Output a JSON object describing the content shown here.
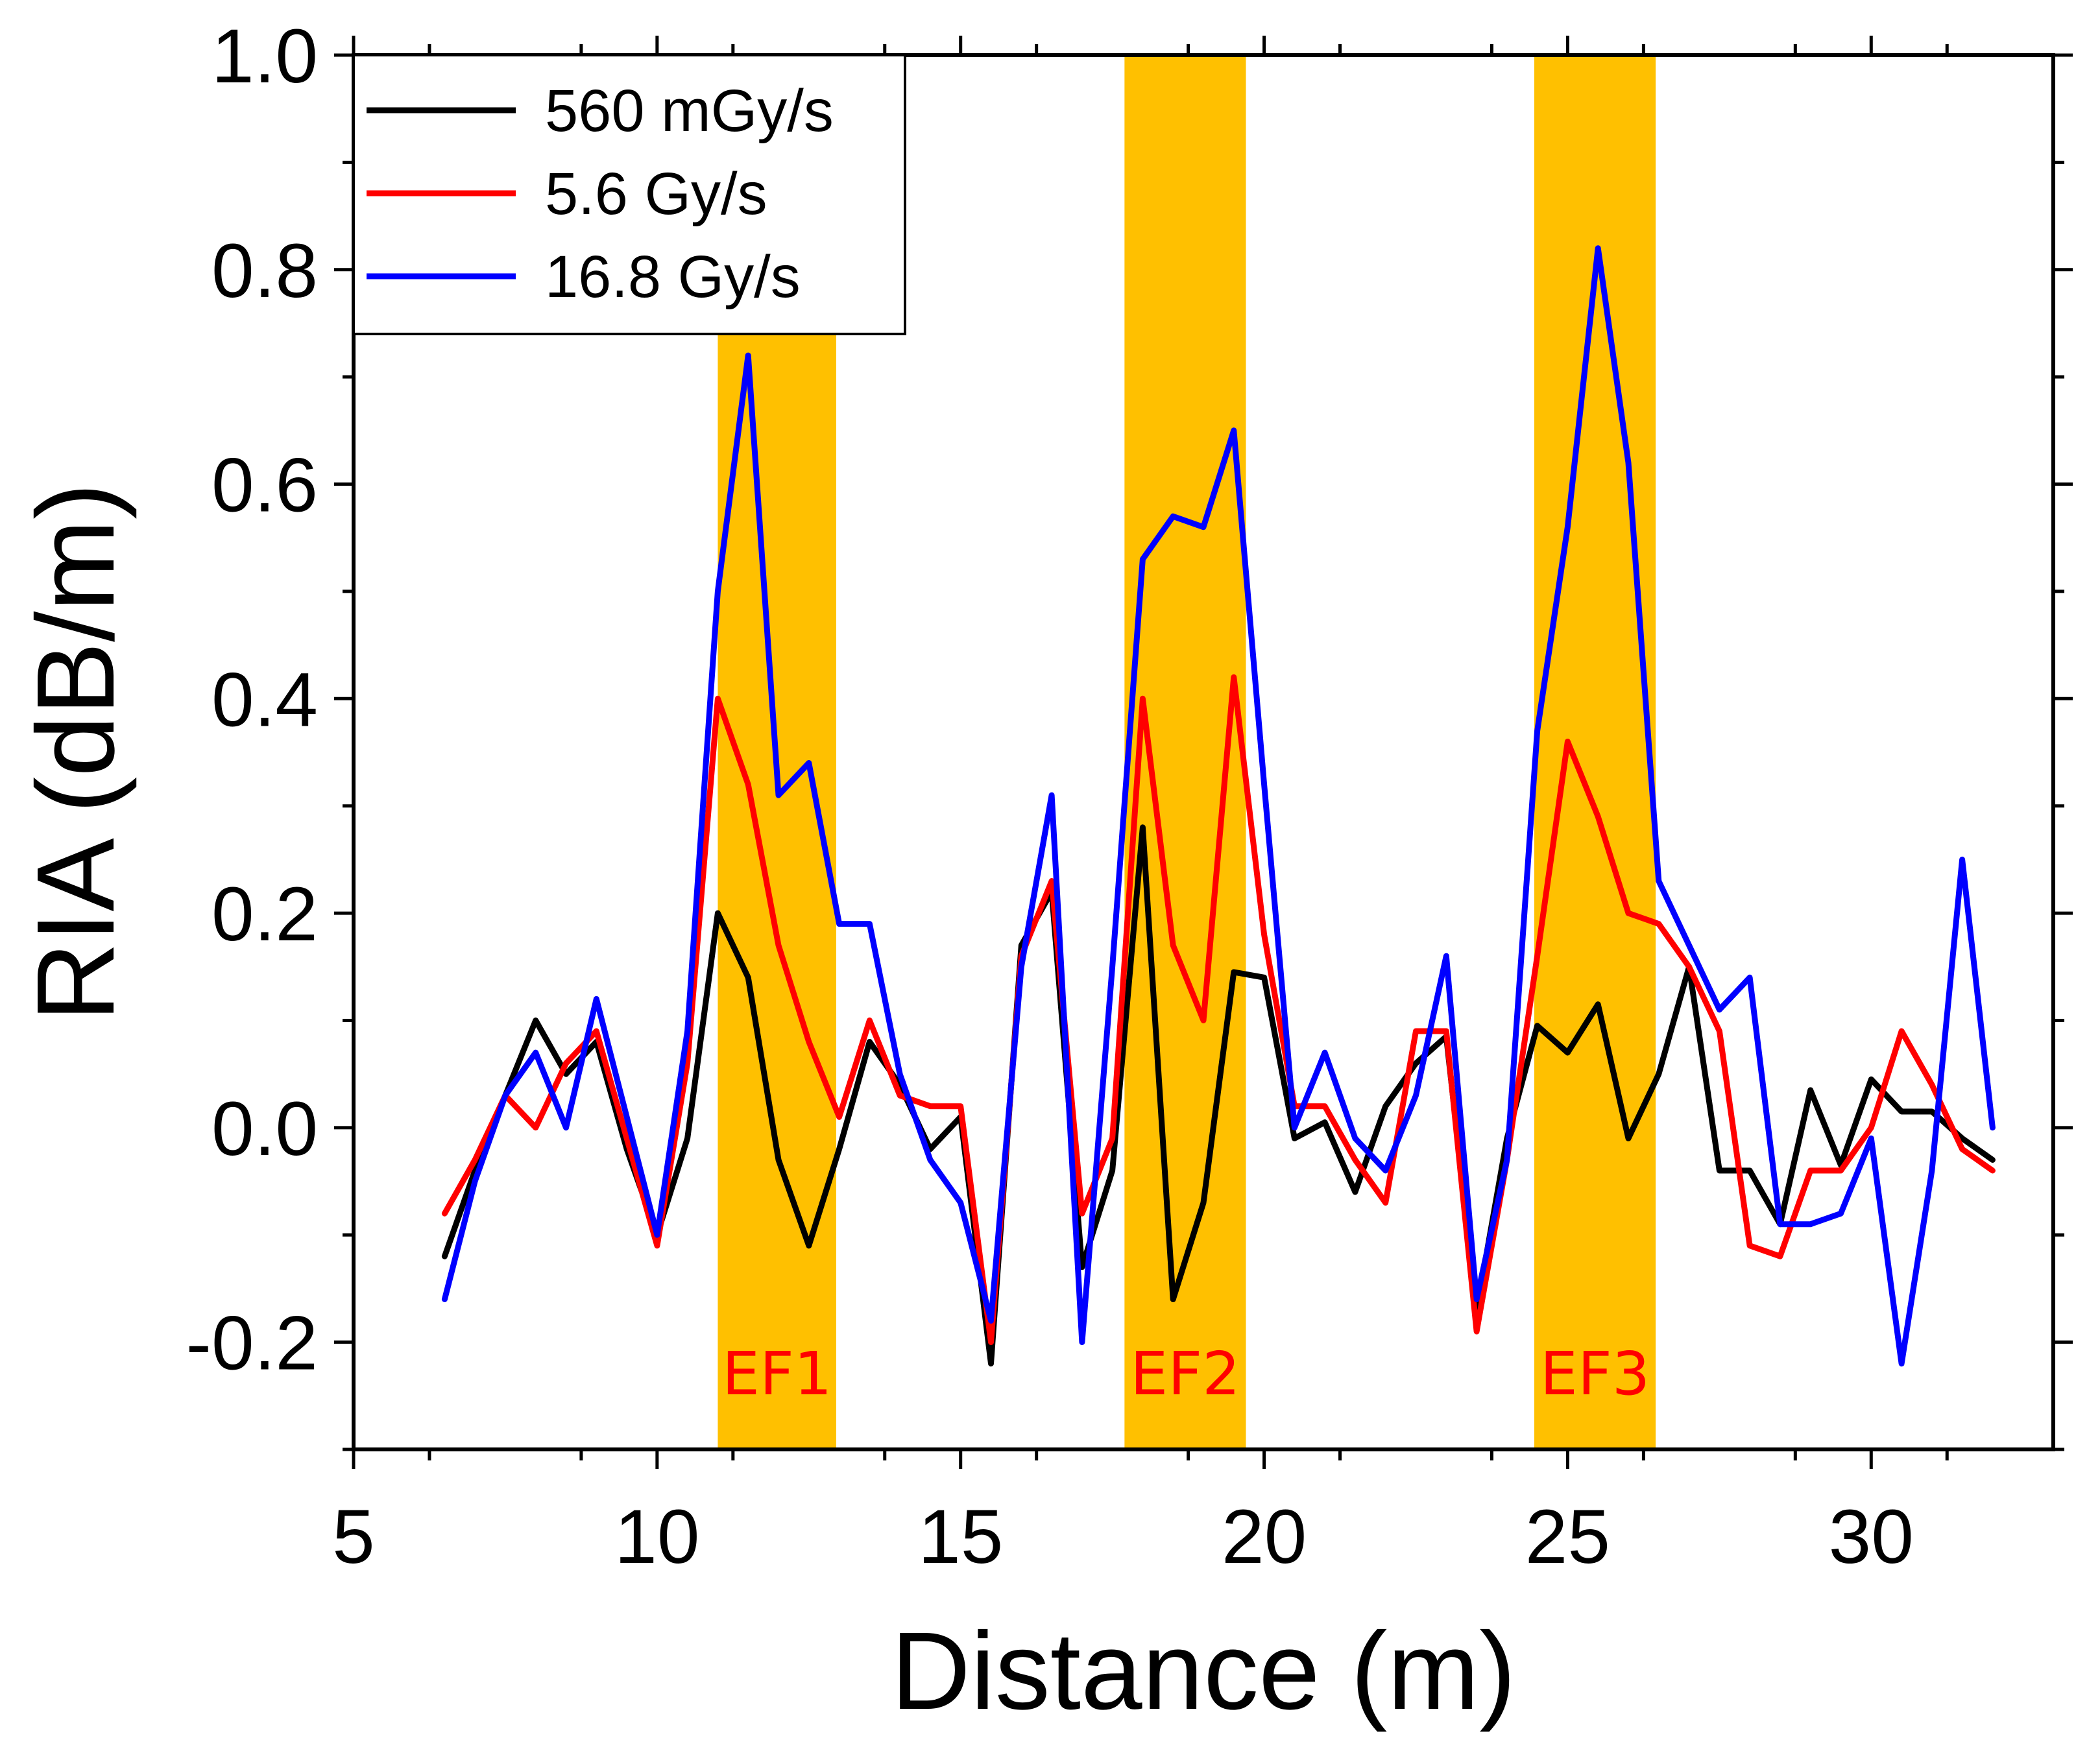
{
  "chart_data": {
    "type": "line",
    "xlabel": "Distance (m)",
    "ylabel": "RIA (dB/m)",
    "xlim": [
      5,
      33
    ],
    "ylim": [
      -0.3,
      1.0
    ],
    "xticks": [
      "5",
      "10",
      "15",
      "20",
      "25",
      "30"
    ],
    "yticks": [
      "-0.2",
      "0.0",
      "0.2",
      "0.4",
      "0.6",
      "0.8",
      "1.0"
    ],
    "grid": false,
    "legend_position": "top-left",
    "bands": [
      {
        "label": "EF1",
        "x_start": 11.0,
        "x_end": 12.95,
        "color": "#FFC000",
        "label_color": "#FF0000"
      },
      {
        "label": "EF2",
        "x_start": 17.7,
        "x_end": 19.7,
        "color": "#FFC000",
        "label_color": "#FF0000"
      },
      {
        "label": "EF3",
        "x_start": 24.45,
        "x_end": 26.45,
        "color": "#FFC000",
        "label_color": "#FF0000"
      }
    ],
    "x": [
      6.5,
      7.0,
      7.5,
      8.0,
      8.5,
      9.0,
      9.5,
      10.0,
      10.5,
      11.0,
      11.5,
      12.0,
      12.5,
      13.0,
      13.5,
      14.0,
      14.5,
      15.0,
      15.5,
      16.0,
      16.5,
      17.0,
      17.5,
      18.0,
      18.5,
      19.0,
      19.5,
      20.0,
      20.5,
      21.0,
      21.5,
      22.0,
      22.5,
      23.0,
      23.5,
      24.0,
      24.5,
      25.0,
      25.5,
      26.0,
      26.5,
      27.0,
      27.5,
      28.0,
      28.5,
      29.0,
      29.5,
      30.0,
      30.5,
      31.0,
      31.5,
      32.0
    ],
    "series": [
      {
        "name": "560 mGy/s",
        "color": "#000000",
        "values": [
          -0.12,
          -0.04,
          0.03,
          0.1,
          0.05,
          0.08,
          -0.02,
          -0.1,
          -0.01,
          0.2,
          0.14,
          -0.03,
          -0.11,
          -0.02,
          0.08,
          0.04,
          -0.02,
          0.01,
          -0.22,
          0.17,
          0.22,
          -0.13,
          -0.04,
          0.28,
          -0.16,
          -0.07,
          0.145,
          0.14,
          -0.01,
          0.005,
          -0.06,
          0.02,
          0.06,
          0.085,
          -0.17,
          -0.01,
          0.095,
          0.07,
          0.115,
          -0.01,
          0.05,
          0.15,
          -0.04,
          -0.04,
          -0.09,
          0.035,
          -0.035,
          0.045,
          0.015,
          0.015,
          -0.01,
          -0.03
        ]
      },
      {
        "name": "5.6 Gy/s",
        "color": "#FF0000",
        "values": [
          -0.08,
          -0.03,
          0.03,
          0.0,
          0.06,
          0.09,
          -0.01,
          -0.11,
          0.06,
          0.4,
          0.32,
          0.17,
          0.08,
          0.01,
          0.1,
          0.03,
          0.02,
          0.02,
          -0.2,
          0.16,
          0.23,
          -0.08,
          -0.01,
          0.4,
          0.17,
          0.1,
          0.42,
          0.18,
          0.02,
          0.02,
          -0.03,
          -0.07,
          0.09,
          0.09,
          -0.19,
          -0.03,
          0.16,
          0.36,
          0.29,
          0.2,
          0.19,
          0.15,
          0.09,
          -0.11,
          -0.12,
          -0.04,
          -0.04,
          0.0,
          0.09,
          0.04,
          -0.02,
          -0.04
        ]
      },
      {
        "name": "16.8 Gy/s",
        "color": "#0000FF",
        "values": [
          -0.16,
          -0.05,
          0.03,
          0.07,
          0.0,
          0.12,
          0.01,
          -0.1,
          0.09,
          0.5,
          0.72,
          0.31,
          0.34,
          0.19,
          0.19,
          0.05,
          -0.03,
          -0.07,
          -0.18,
          0.15,
          0.31,
          -0.2,
          0.15,
          0.53,
          0.57,
          0.56,
          0.65,
          0.32,
          0.0,
          0.07,
          -0.01,
          -0.04,
          0.03,
          0.16,
          -0.16,
          -0.03,
          0.37,
          0.56,
          0.82,
          0.62,
          0.23,
          0.17,
          0.11,
          0.14,
          -0.09,
          -0.09,
          -0.08,
          -0.01,
          -0.22,
          -0.04,
          0.25,
          0.0
        ]
      }
    ]
  }
}
